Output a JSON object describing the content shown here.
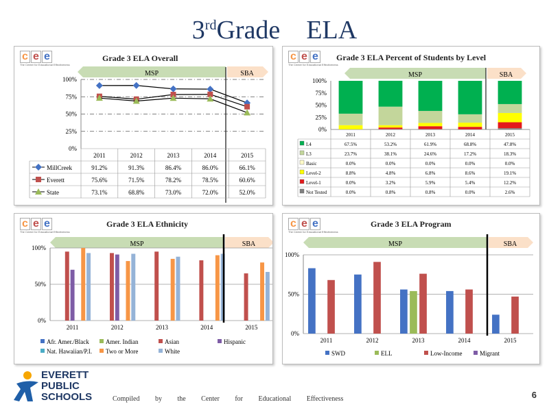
{
  "page": {
    "title_num": "3",
    "title_sup": "rd",
    "title_rest": "Grade",
    "title_subject": "ELA",
    "footer": "Compiled by the Center for Educational Effectiveness",
    "page_number": "6",
    "district_logo": [
      "EVERETT",
      "PUBLIC",
      "SCHOOLS"
    ],
    "cee_logo_letters": [
      "c",
      "e",
      "e"
    ],
    "cee_logo_sub": "The Center for Educational Effectiveness",
    "msp_label": "MSP",
    "sba_label": "SBA",
    "colors": {
      "navy": "#1f3864",
      "msp_arrow": "#c8dcb4",
      "sba_arrow": "#fbe0c8"
    }
  },
  "chart_data": [
    {
      "type": "line",
      "title": "Grade 3 ELA Overall",
      "x": [
        "2011",
        "2012",
        "2013",
        "2014",
        "2015"
      ],
      "ylim": [
        0,
        100
      ],
      "yticks": [
        "0%",
        "25%",
        "50%",
        "75%",
        "100%"
      ],
      "series": [
        {
          "name": "MillCreek",
          "values": [
            91.2,
            91.3,
            86.4,
            86.0,
            66.1
          ],
          "labels": [
            "91.2%",
            "91.3%",
            "86.4%",
            "86.0%",
            "66.1%"
          ],
          "color": "#4472c4",
          "marker": "diamond"
        },
        {
          "name": "Everett",
          "values": [
            75.6,
            71.5,
            78.2,
            78.5,
            60.6
          ],
          "labels": [
            "75.6%",
            "71.5%",
            "78.2%",
            "78.5%",
            "60.6%"
          ],
          "color": "#c0504d",
          "marker": "square"
        },
        {
          "name": "State",
          "values": [
            73.1,
            68.8,
            73.0,
            72.0,
            52.0
          ],
          "labels": [
            "73.1%",
            "68.8%",
            "73.0%",
            "72.0%",
            "52.0%"
          ],
          "color": "#9bbb59",
          "marker": "triangle"
        }
      ],
      "grid": "dash-dot"
    },
    {
      "type": "bar",
      "stacked": true,
      "title": "Grade 3 ELA Percent of Students by Level",
      "x": [
        "2011",
        "2012",
        "2013",
        "2014",
        "2015"
      ],
      "ylim": [
        0,
        100
      ],
      "yticks": [
        "0%",
        "25%",
        "50%",
        "75%",
        "100%"
      ],
      "series": [
        {
          "name": "L4",
          "values": [
            67.5,
            53.2,
            61.9,
            68.8,
            47.8
          ],
          "labels": [
            "67.5%",
            "53.2%",
            "61.9%",
            "68.8%",
            "47.8%"
          ],
          "color": "#00b050"
        },
        {
          "name": "L3",
          "values": [
            23.7,
            38.1,
            24.6,
            17.2,
            18.3
          ],
          "labels": [
            "23.7%",
            "38.1%",
            "24.6%",
            "17.2%",
            "18.3%"
          ],
          "color": "#c3d69b"
        },
        {
          "name": "Basic",
          "values": [
            0.0,
            0.0,
            0.0,
            0.0,
            0.0
          ],
          "labels": [
            "0.0%",
            "0.0%",
            "0.0%",
            "0.0%",
            "0.0%"
          ],
          "color": "#fffbc8"
        },
        {
          "name": "Level-2",
          "values": [
            8.8,
            4.8,
            6.8,
            8.6,
            19.1
          ],
          "labels": [
            "8.8%",
            "4.8%",
            "6.8%",
            "8.6%",
            "19.1%"
          ],
          "color": "#ffff00"
        },
        {
          "name": "Level-1",
          "values": [
            0.0,
            3.2,
            5.9,
            5.4,
            12.2
          ],
          "labels": [
            "0.0%",
            "3.2%",
            "5.9%",
            "5.4%",
            "12.2%"
          ],
          "color": "#e31a1c"
        },
        {
          "name": "Not Tested",
          "values": [
            0.0,
            0.8,
            0.8,
            0.0,
            2.6
          ],
          "labels": [
            "0.0%",
            "0.8%",
            "0.8%",
            "0.0%",
            "2.6%"
          ],
          "color": "#7f7f7f"
        }
      ]
    },
    {
      "type": "bar",
      "title": "Grade 3 ELA Ethnicity",
      "x": [
        "2011",
        "2012",
        "2013",
        "2014",
        "2015"
      ],
      "ylim": [
        0,
        100
      ],
      "yticks": [
        "0%",
        "50%",
        "100%"
      ],
      "series": [
        {
          "name": "Afr. Amer./Black",
          "values": [
            null,
            null,
            null,
            null,
            null
          ],
          "color": "#4472c4"
        },
        {
          "name": "Amer. Indian",
          "values": [
            null,
            null,
            null,
            null,
            null
          ],
          "color": "#9bbb59"
        },
        {
          "name": "Asian",
          "values": [
            95,
            93,
            95,
            83,
            65
          ],
          "color": "#c0504d"
        },
        {
          "name": "Hispanic",
          "values": [
            70,
            91,
            null,
            null,
            null
          ],
          "color": "#7e5ca6"
        },
        {
          "name": "Nat. Hawaiian/P.I.",
          "values": [
            null,
            null,
            null,
            null,
            null
          ],
          "color": "#4bacc6"
        },
        {
          "name": "Two or More",
          "values": [
            100,
            82,
            85,
            90,
            80
          ],
          "color": "#f79646"
        },
        {
          "name": "White",
          "values": [
            93,
            92,
            88,
            92,
            67
          ],
          "color": "#95b3d7"
        }
      ],
      "legend": "bottom"
    },
    {
      "type": "bar",
      "title": "Grade 3 ELA Program",
      "x": [
        "2011",
        "2012",
        "2013",
        "2014",
        "2015"
      ],
      "ylim": [
        0,
        100
      ],
      "yticks": [
        "0%",
        "50%",
        "100%"
      ],
      "series": [
        {
          "name": "SWD",
          "values": [
            83,
            75,
            56,
            54,
            24
          ],
          "color": "#4472c4"
        },
        {
          "name": "ELL",
          "values": [
            null,
            null,
            54,
            null,
            null
          ],
          "color": "#9bbb59"
        },
        {
          "name": "Low-Income",
          "values": [
            68,
            91,
            76,
            56,
            47
          ],
          "color": "#c0504d"
        },
        {
          "name": "Migrant",
          "values": [
            null,
            null,
            null,
            null,
            null
          ],
          "color": "#7e5ca6"
        }
      ],
      "legend": "bottom"
    }
  ]
}
